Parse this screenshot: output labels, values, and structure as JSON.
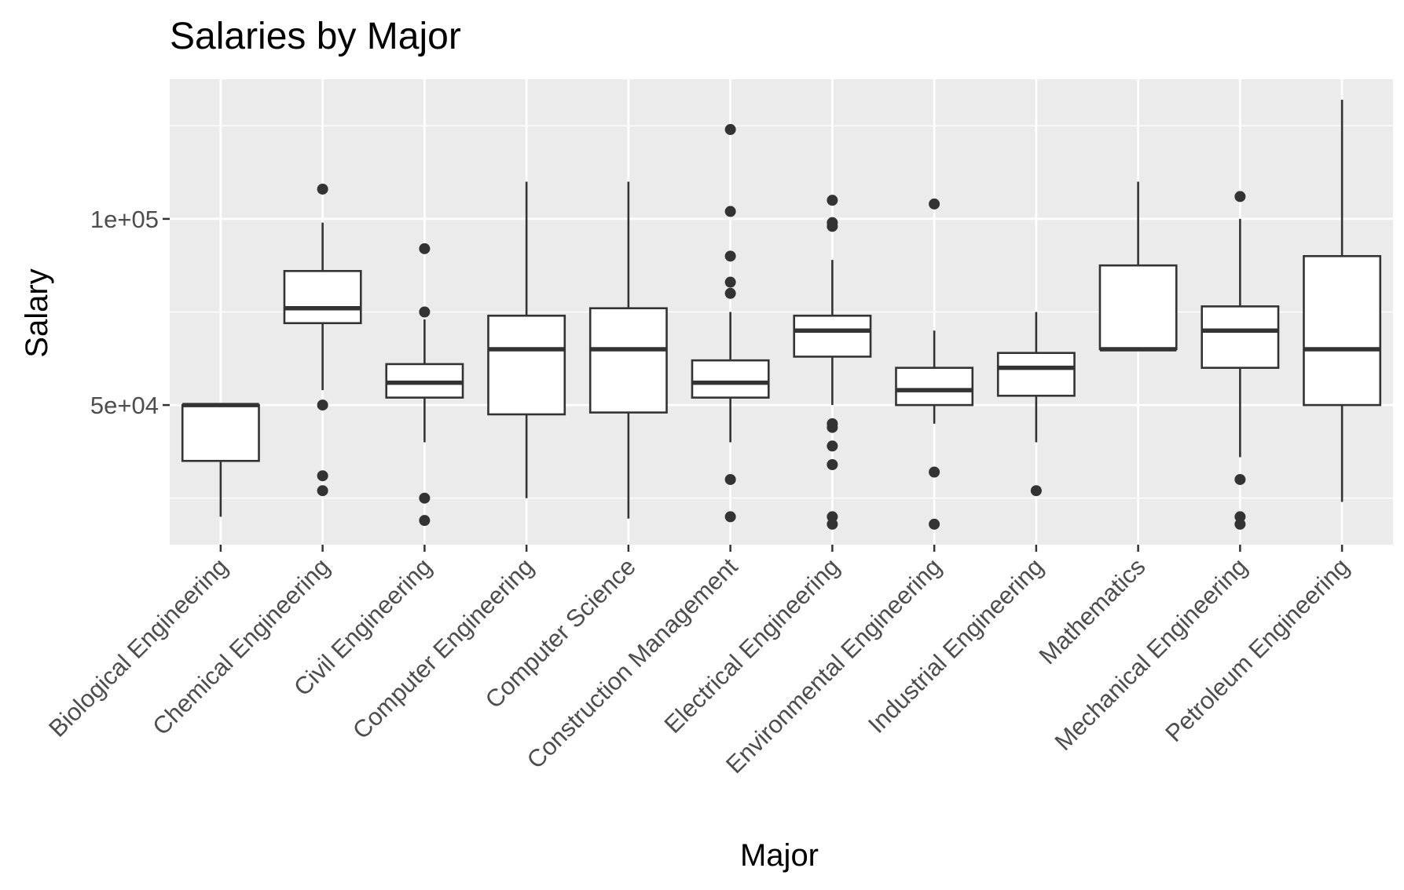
{
  "chart_data": {
    "type": "boxplot",
    "title": "Salaries by Major",
    "xlabel": "Major",
    "ylabel": "Salary",
    "ylim": [
      12500,
      137500
    ],
    "yticks": [
      {
        "value": 50000,
        "label": "5e+04"
      },
      {
        "value": 100000,
        "label": "1e+05"
      }
    ],
    "minor_gridlines": [
      25000,
      75000,
      125000
    ],
    "grid": true,
    "legend": "none",
    "colors": {
      "panel_background": "#ebebeb",
      "grid": "#ffffff",
      "box_fill": "#ffffff",
      "box_line": "#333333",
      "outlier": "#333333",
      "tick_text": "#4d4d4d"
    },
    "categories": [
      "Biological Engineering",
      "Chemical Engineering",
      "Civil Engineering",
      "Computer Engineering",
      "Computer Science",
      "Construction Management",
      "Electrical Engineering",
      "Environmental Engineering",
      "Industrial Engineering",
      "Mathematics",
      "Mechanical Engineering",
      "Petroleum Engineering"
    ],
    "boxes": [
      {
        "category": "Biological Engineering",
        "lower_whisker": 20000,
        "q1": 35000,
        "median": 50000,
        "q3": 50000,
        "upper_whisker": 50000,
        "outliers": []
      },
      {
        "category": "Chemical Engineering",
        "lower_whisker": 54000,
        "q1": 72000,
        "median": 76000,
        "q3": 86000,
        "upper_whisker": 99000,
        "outliers": [
          108000,
          50000,
          31000,
          27000
        ]
      },
      {
        "category": "Civil Engineering",
        "lower_whisker": 40000,
        "q1": 52000,
        "median": 56000,
        "q3": 61000,
        "upper_whisker": 73000,
        "outliers": [
          92000,
          75000,
          25000,
          19000
        ]
      },
      {
        "category": "Computer Engineering",
        "lower_whisker": 25000,
        "q1": 47500,
        "median": 65000,
        "q3": 74000,
        "upper_whisker": 110000,
        "outliers": []
      },
      {
        "category": "Computer Science",
        "lower_whisker": 19500,
        "q1": 48000,
        "median": 65000,
        "q3": 76000,
        "upper_whisker": 110000,
        "outliers": []
      },
      {
        "category": "Construction Management",
        "lower_whisker": 40000,
        "q1": 52000,
        "median": 56000,
        "q3": 62000,
        "upper_whisker": 75000,
        "outliers": [
          124000,
          102000,
          90000,
          83000,
          80000,
          30000,
          20000
        ]
      },
      {
        "category": "Electrical Engineering",
        "lower_whisker": 50000,
        "q1": 63000,
        "median": 70000,
        "q3": 74000,
        "upper_whisker": 89000,
        "outliers": [
          105000,
          99000,
          98000,
          45000,
          44000,
          39000,
          34000,
          20000,
          18000
        ]
      },
      {
        "category": "Environmental Engineering",
        "lower_whisker": 45000,
        "q1": 50000,
        "median": 54000,
        "q3": 60000,
        "upper_whisker": 70000,
        "outliers": [
          104000,
          32000,
          18000
        ]
      },
      {
        "category": "Industrial Engineering",
        "lower_whisker": 40000,
        "q1": 52500,
        "median": 60000,
        "q3": 64000,
        "upper_whisker": 75000,
        "outliers": [
          27000
        ]
      },
      {
        "category": "Mathematics",
        "lower_whisker": 65000,
        "q1": 65000,
        "median": 65000,
        "q3": 87500,
        "upper_whisker": 110000,
        "outliers": []
      },
      {
        "category": "Mechanical Engineering",
        "lower_whisker": 36000,
        "q1": 60000,
        "median": 70000,
        "q3": 76500,
        "upper_whisker": 100000,
        "outliers": [
          106000,
          30000,
          20000,
          18000
        ]
      },
      {
        "category": "Petroleum Engineering",
        "lower_whisker": 24000,
        "q1": 50000,
        "median": 65000,
        "q3": 90000,
        "upper_whisker": 132000,
        "outliers": []
      }
    ]
  }
}
